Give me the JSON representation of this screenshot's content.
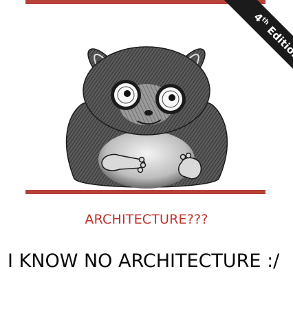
{
  "cover": {
    "edition_number": "4",
    "edition_suffix": "th",
    "edition_word": " Edition",
    "animal_icon": "tarsier-illustration",
    "subtitle": "ARCHITECTURE???",
    "caption": "I KNOW NO ARCHITECTURE :/"
  },
  "colors": {
    "accent_red": "#b8413a",
    "subtitle_red": "#c0322b",
    "band_black": "#1b1b1b",
    "text_black": "#0a0a0a"
  }
}
